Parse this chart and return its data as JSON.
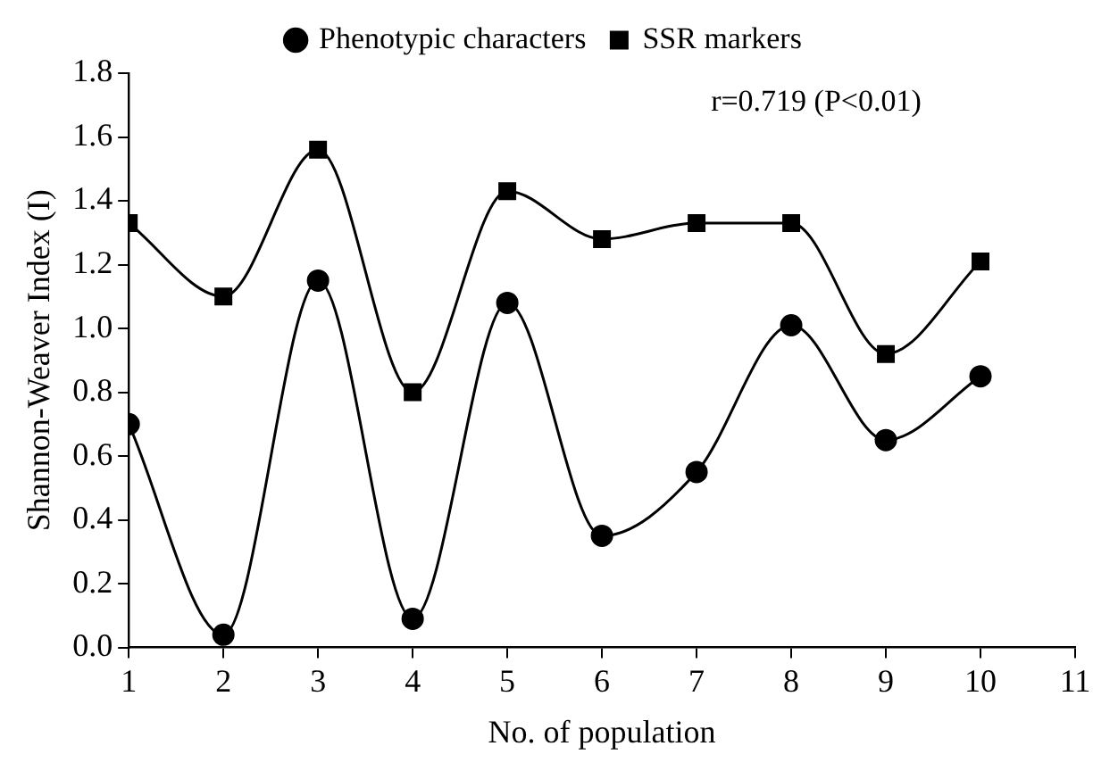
{
  "chart_data": {
    "type": "line",
    "xlabel": "No. of population",
    "ylabel": "Shannon-Weaver Index (I)",
    "annotations": [
      "r=0.719 (P<0.01)"
    ],
    "x": [
      1,
      2,
      3,
      4,
      5,
      6,
      7,
      8,
      9,
      10
    ],
    "series": [
      {
        "name": "Phenotypic characters",
        "color": "#000000",
        "marker": "circle",
        "values": [
          0.7,
          0.04,
          1.15,
          0.09,
          1.08,
          0.35,
          0.55,
          1.01,
          0.65,
          0.85
        ]
      },
      {
        "name": "SSR markers",
        "color": "#000000",
        "marker": "square",
        "values": [
          1.33,
          1.1,
          1.56,
          0.8,
          1.43,
          1.28,
          1.33,
          1.33,
          0.92,
          1.21
        ]
      }
    ],
    "xlim": [
      1,
      11
    ],
    "xticks": [
      1,
      2,
      3,
      4,
      5,
      6,
      7,
      8,
      9,
      10,
      11
    ],
    "ylim": [
      0,
      1.8
    ],
    "yticks": [
      {
        "value": 0,
        "label": "0.0"
      },
      0.2,
      0.4,
      0.6,
      0.8,
      {
        "value": 1,
        "label": "1.0"
      },
      1.2,
      1.4,
      1.6,
      1.8
    ],
    "grid": false,
    "legend": "top",
    "line_style": "solid"
  }
}
